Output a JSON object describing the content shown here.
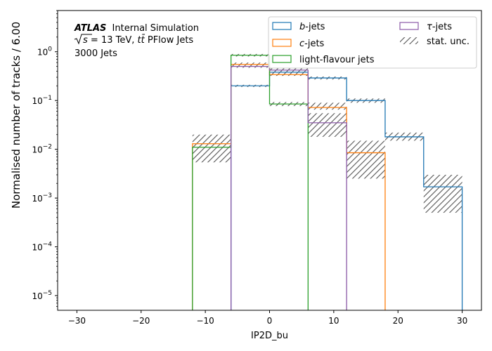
{
  "chart_data": {
    "type": "histogram-step",
    "xlabel": "IP2D_bu",
    "ylabel": "Normalised number of tracks / 6.00",
    "y_scale": "log",
    "ylim": [
      5e-06,
      7
    ],
    "xlim": [
      -33,
      33
    ],
    "x_ticks": [
      -30,
      -20,
      -10,
      0,
      10,
      20,
      30
    ],
    "x_tick_labels": [
      "−30",
      "−20",
      "−10",
      "0",
      "10",
      "20",
      "30"
    ],
    "y_ticks": [
      1e-05,
      0.0001,
      0.001,
      0.01,
      0.1,
      1
    ],
    "y_tick_labels": [
      {
        "base": "10",
        "exp": "−5"
      },
      {
        "base": "10",
        "exp": "−4"
      },
      {
        "base": "10",
        "exp": "−3"
      },
      {
        "base": "10",
        "exp": "−2"
      },
      {
        "base": "10",
        "exp": "−1"
      },
      {
        "base": "10",
        "exp": "0"
      }
    ],
    "bin_edges": [
      -12,
      -6,
      0,
      6,
      12,
      18,
      24,
      30
    ],
    "series": [
      {
        "name": "b-jets",
        "italic": "b",
        "suffix": "-jets",
        "color": "#1f77b4",
        "values": [
          null,
          0.2,
          0.38,
          0.29,
          0.1,
          0.018,
          0.0017
        ]
      },
      {
        "name": "c-jets",
        "italic": "c",
        "suffix": "-jets",
        "color": "#ff7f0e",
        "values": [
          0.013,
          0.55,
          0.34,
          0.072,
          0.0085,
          null,
          null
        ]
      },
      {
        "name": "light-flavour jets",
        "italic": "",
        "suffix": "light-flavour jets",
        "color": "#2ca02c",
        "values": [
          0.011,
          0.85,
          0.085,
          null,
          null,
          null,
          null
        ]
      },
      {
        "name": "τ-jets",
        "italic": "τ",
        "suffix": "-jets",
        "color": "#8c5aa8",
        "values": [
          null,
          0.5,
          0.42,
          0.035,
          null,
          null,
          null
        ]
      }
    ],
    "stat_unc": {
      "label": "stat. unc.",
      "bands": [
        {
          "x0": -12,
          "x1": -6,
          "lo": 0.0054,
          "hi": 0.02
        },
        {
          "x0": -6,
          "x1": 0,
          "lo": 0.19,
          "hi": 0.21
        },
        {
          "x0": -6,
          "x1": 0,
          "lo": 0.47,
          "hi": 0.6
        },
        {
          "x0": -6,
          "x1": 0,
          "lo": 0.8,
          "hi": 0.9
        },
        {
          "x0": 0,
          "x1": 6,
          "lo": 0.077,
          "hi": 0.093
        },
        {
          "x0": 0,
          "x1": 6,
          "lo": 0.32,
          "hi": 0.46
        },
        {
          "x0": 6,
          "x1": 12,
          "lo": 0.018,
          "hi": 0.055
        },
        {
          "x0": 6,
          "x1": 12,
          "lo": 0.065,
          "hi": 0.09
        },
        {
          "x0": 6,
          "x1": 12,
          "lo": 0.27,
          "hi": 0.31
        },
        {
          "x0": 12,
          "x1": 18,
          "lo": 0.0025,
          "hi": 0.015
        },
        {
          "x0": 12,
          "x1": 18,
          "lo": 0.09,
          "hi": 0.11
        },
        {
          "x0": 18,
          "x1": 24,
          "lo": 0.015,
          "hi": 0.022
        },
        {
          "x0": 24,
          "x1": 30,
          "lo": 0.0005,
          "hi": 0.003
        }
      ]
    },
    "legend_position": "top-right",
    "annotations": {
      "experiment": "ATLAS",
      "status": "Internal Simulation",
      "line2_sqrt_s": "s",
      "line2_energy": " = 13 TeV, ",
      "line2_tt": "tt̄",
      "line2_jets": " PFlow Jets",
      "line3": "3000 Jets"
    }
  }
}
